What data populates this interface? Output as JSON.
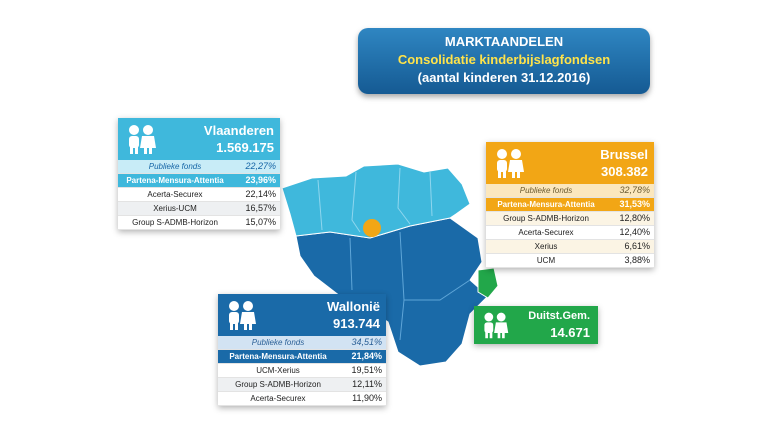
{
  "colors": {
    "vlaanderen": "#3fb8dc",
    "brussel": "#f2a615",
    "wallonie": "#1a6aa8",
    "duitstalig": "#22a74a",
    "title_bg": "#1f6faf",
    "title_sub": "#ffe34a"
  },
  "title": {
    "line1": "MARKTAANDELEN",
    "line2": "Consolidatie kinderbijslagfondsen",
    "line3": "(aantal kinderen 31.12.2016)"
  },
  "icons": {
    "region_icon": "children-icon"
  },
  "regions": {
    "vlaanderen": {
      "name": "Vlaanderen",
      "count": "1.569.175",
      "rows": [
        {
          "label": "Publieke fonds",
          "pct": "22,27%"
        },
        {
          "label": "Partena-Mensura-Attentia",
          "pct": "23,96%"
        },
        {
          "label": "Acerta-Securex",
          "pct": "22,14%"
        },
        {
          "label": "Xerius-UCM",
          "pct": "16,57%"
        },
        {
          "label": "Group S-ADMB-Horizon",
          "pct": "15,07%"
        }
      ]
    },
    "brussel": {
      "name": "Brussel",
      "count": "308.382",
      "rows": [
        {
          "label": "Publieke fonds",
          "pct": "32,78%"
        },
        {
          "label": "Partena-Mensura-Attentia",
          "pct": "31,53%"
        },
        {
          "label": "Group S-ADMB-Horizon",
          "pct": "12,80%"
        },
        {
          "label": "Acerta-Securex",
          "pct": "12,40%"
        },
        {
          "label": "Xerius",
          "pct": "6,61%"
        },
        {
          "label": "UCM",
          "pct": "3,88%"
        }
      ]
    },
    "wallonie": {
      "name": "Wallonië",
      "count": "913.744",
      "rows": [
        {
          "label": "Publieke fonds",
          "pct": "34,51%"
        },
        {
          "label": "Partena-Mensura-Attentia",
          "pct": "21,84%"
        },
        {
          "label": "UCM-Xerius",
          "pct": "19,51%"
        },
        {
          "label": "Group S-ADMB-Horizon",
          "pct": "12,11%"
        },
        {
          "label": "Acerta-Securex",
          "pct": "11,90%"
        }
      ]
    },
    "duitstalig": {
      "name": "Duitst.Gem.",
      "count": "14.671"
    }
  }
}
